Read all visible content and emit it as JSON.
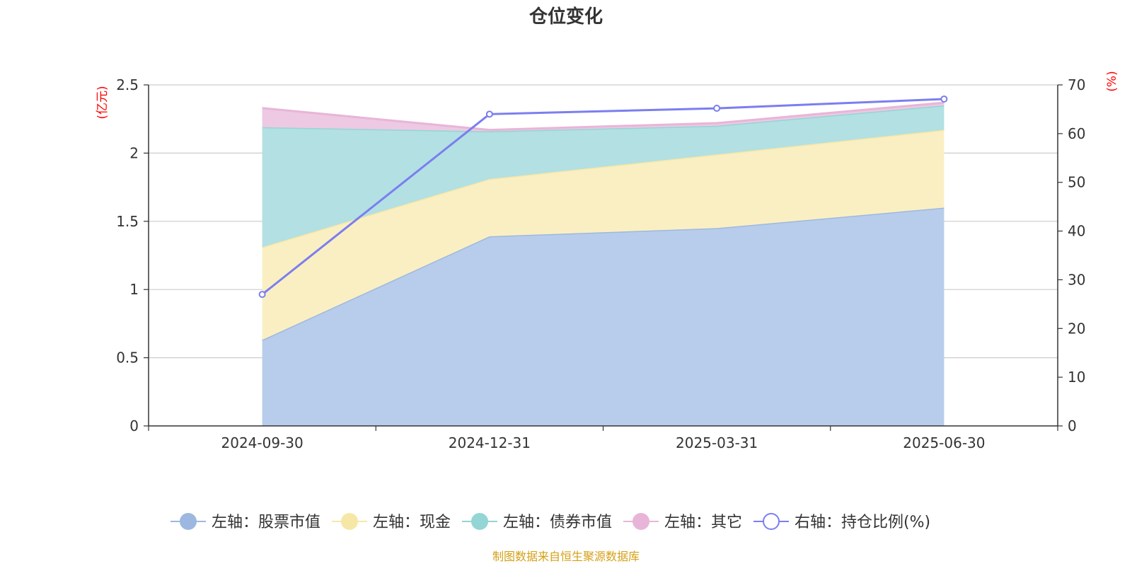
{
  "chart_data": {
    "type": "area",
    "title": "仓位变化",
    "categories": [
      "2024-09-30",
      "2024-12-31",
      "2025-03-31",
      "2025-06-30"
    ],
    "left_axis": {
      "unit": "(亿元)",
      "min": 0,
      "max": 2.5,
      "ticks": [
        "0",
        "0.5",
        "1",
        "1.5",
        "2",
        "2.5"
      ]
    },
    "right_axis": {
      "unit": "(%)",
      "min": 0,
      "max": 70,
      "ticks": [
        "0",
        "10",
        "20",
        "30",
        "40",
        "50",
        "60",
        "70"
      ]
    },
    "stacked_series": [
      {
        "name": "左轴：股票市值",
        "values": [
          0.63,
          1.39,
          1.45,
          1.6
        ],
        "color": "#9db8e0",
        "fill": "#b8cdeb"
      },
      {
        "name": "左轴：现金",
        "values": [
          0.68,
          0.42,
          0.54,
          0.57
        ],
        "color": "#f7e7a6",
        "fill": "#faefc3"
      },
      {
        "name": "左轴：债券市值",
        "values": [
          0.88,
          0.35,
          0.21,
          0.18
        ],
        "color": "#94d5d5",
        "fill": "#b3e0e2"
      },
      {
        "name": "左轴：其它",
        "values": [
          0.14,
          0.01,
          0.02,
          0.02
        ],
        "color": "#e8b5d8",
        "fill": "#edc9e3"
      }
    ],
    "line_series": [
      {
        "name": "右轴：持仓比例(%)",
        "values": [
          27.0,
          64.0,
          65.2,
          67.1
        ],
        "color": "#7b7ef0"
      }
    ],
    "grid": true,
    "legend_position": "bottom"
  },
  "footer": {
    "source": "制图数据来自恒生聚源数据库"
  }
}
